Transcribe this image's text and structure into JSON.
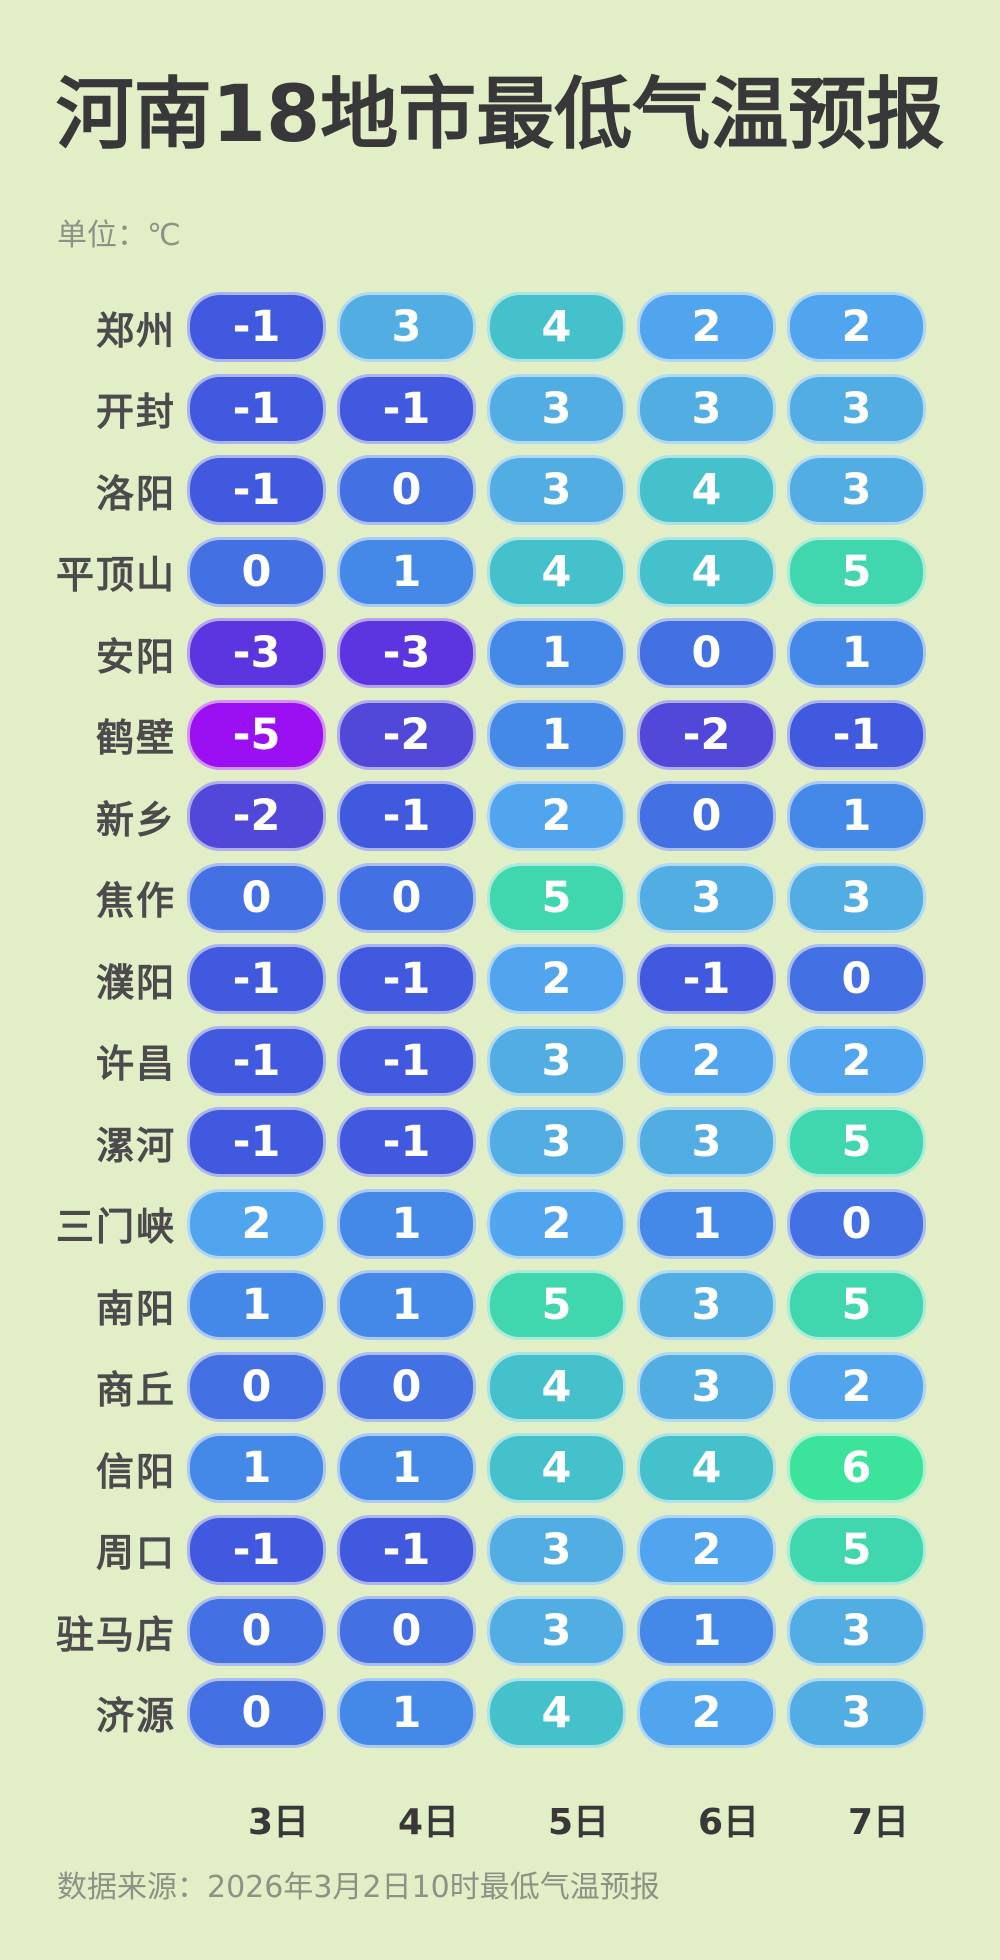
{
  "background": "#e2eec5",
  "title": "河南18地市最低气温预报",
  "unit_label": "单位：℃",
  "footer": "数据来源：2026年3月2日10时最低气温预报",
  "chart_data": {
    "type": "heatmap",
    "title": "河南18地市最低气温预报",
    "unit": "℃",
    "columns": [
      "3日",
      "4日",
      "5日",
      "6日",
      "7日"
    ],
    "rows": [
      {
        "city": "郑州",
        "values": [
          -1,
          3,
          4,
          2,
          2
        ]
      },
      {
        "city": "开封",
        "values": [
          -1,
          -1,
          3,
          3,
          3
        ]
      },
      {
        "city": "洛阳",
        "values": [
          -1,
          0,
          3,
          4,
          3
        ]
      },
      {
        "city": "平顶山",
        "values": [
          0,
          1,
          4,
          4,
          5
        ]
      },
      {
        "city": "安阳",
        "values": [
          -3,
          -3,
          1,
          0,
          1
        ]
      },
      {
        "city": "鹤壁",
        "values": [
          -5,
          -2,
          1,
          -2,
          -1
        ]
      },
      {
        "city": "新乡",
        "values": [
          -2,
          -1,
          2,
          0,
          1
        ]
      },
      {
        "city": "焦作",
        "values": [
          0,
          0,
          5,
          3,
          3
        ]
      },
      {
        "city": "濮阳",
        "values": [
          -1,
          -1,
          2,
          -1,
          0
        ]
      },
      {
        "city": "许昌",
        "values": [
          -1,
          -1,
          3,
          2,
          2
        ]
      },
      {
        "city": "漯河",
        "values": [
          -1,
          -1,
          3,
          3,
          5
        ]
      },
      {
        "city": "三门峡",
        "values": [
          2,
          1,
          2,
          1,
          0
        ]
      },
      {
        "city": "南阳",
        "values": [
          1,
          1,
          5,
          3,
          5
        ]
      },
      {
        "city": "商丘",
        "values": [
          0,
          0,
          4,
          3,
          2
        ]
      },
      {
        "city": "信阳",
        "values": [
          1,
          1,
          4,
          4,
          6
        ]
      },
      {
        "city": "周口",
        "values": [
          -1,
          -1,
          3,
          2,
          5
        ]
      },
      {
        "city": "驻马店",
        "values": [
          0,
          0,
          3,
          1,
          3
        ]
      },
      {
        "city": "济源",
        "values": [
          0,
          1,
          4,
          2,
          3
        ]
      }
    ],
    "value_colors": {
      "-5": "#9b10f2",
      "-3": "#5c34e0",
      "-2": "#5148da",
      "-1": "#4159de",
      "0": "#4370e2",
      "1": "#4489e8",
      "2": "#51a5ee",
      "3": "#52aee2",
      "4": "#45c1cb",
      "5": "#40d6ae",
      "6": "#3ce39b"
    },
    "text_colors": {
      "title": "#38383b",
      "muted": "#8d9287",
      "city": "#4b4b4e",
      "pill_text": "#ffffff"
    }
  }
}
